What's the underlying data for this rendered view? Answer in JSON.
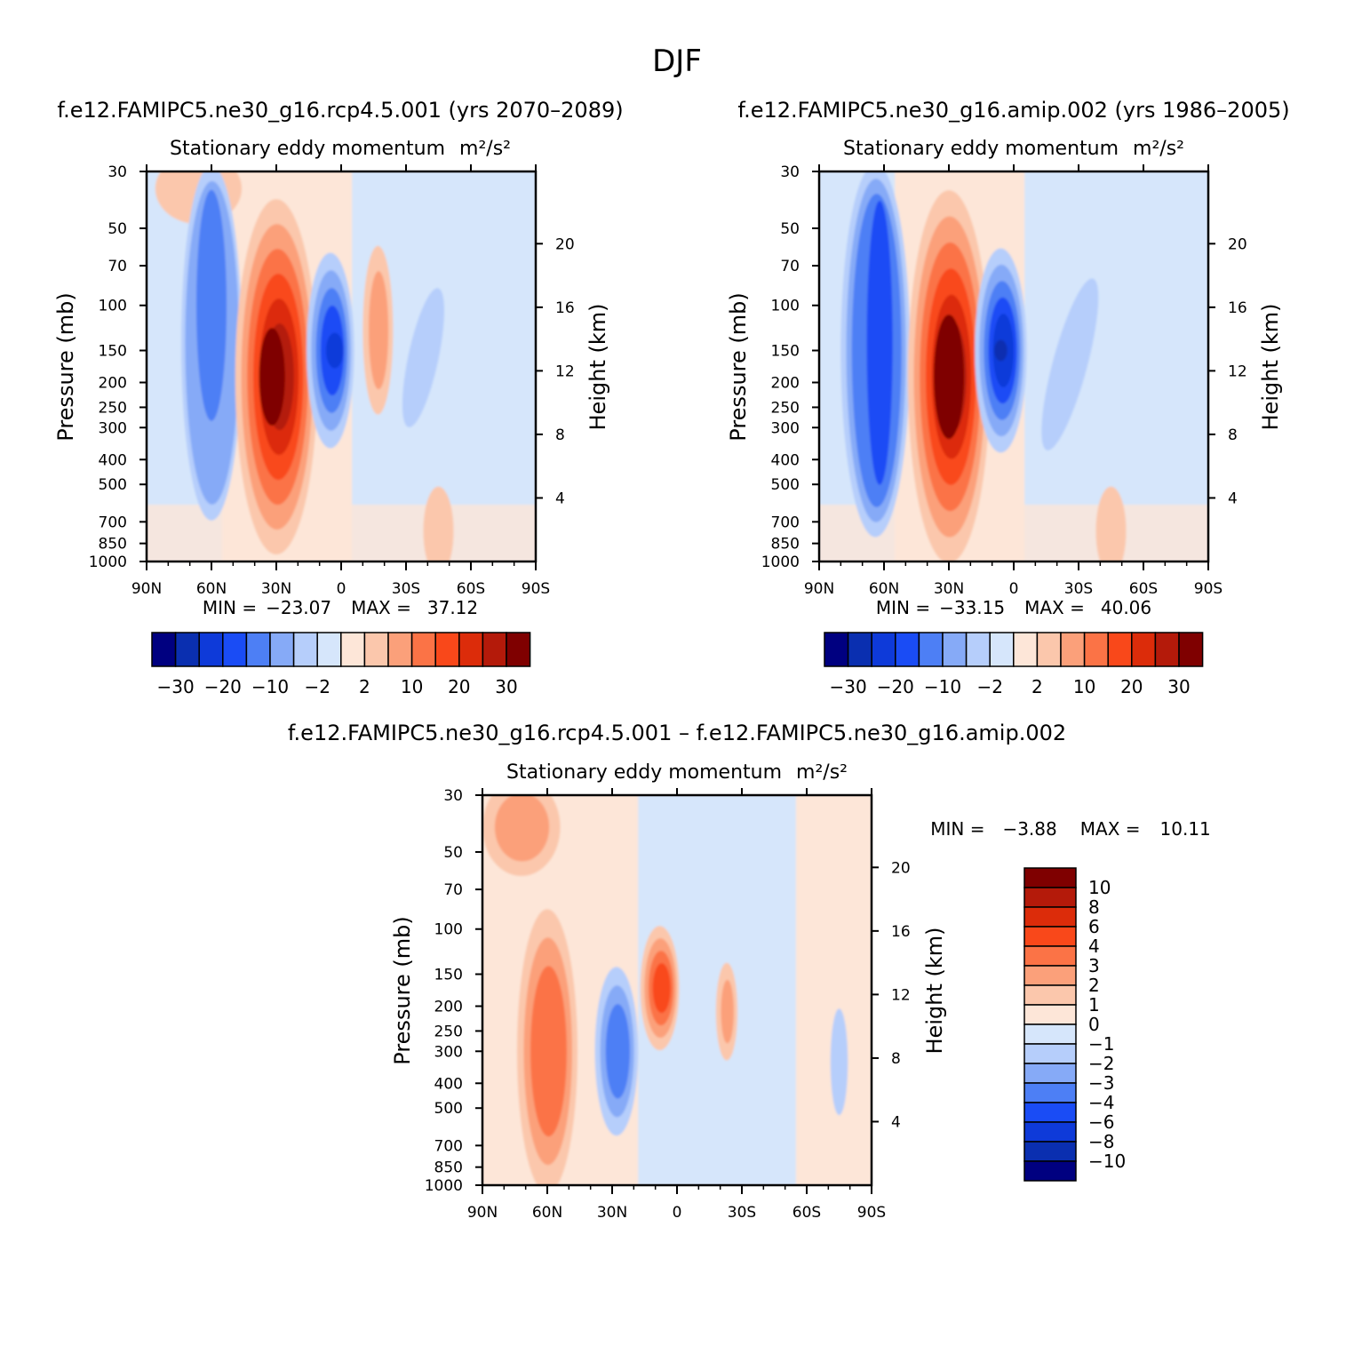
{
  "title": "DJF",
  "colors": {
    "blues": [
      "#000080",
      "#0a2fb0",
      "#0e3ad9",
      "#1a4cf5",
      "#4d7ff5",
      "#86aaf7",
      "#b6cefb",
      "#d6e6fb"
    ],
    "reds": [
      "#fde6d8",
      "#fbc7ac",
      "#fba07a",
      "#fb7346",
      "#f9481a",
      "#dc2c0a",
      "#b41a0a",
      "#7f0000"
    ]
  },
  "panel_text": {
    "subtitle": "Stationary eddy momentum",
    "units": "m²/s²",
    "ylabel_left": "Pressure (mb)",
    "ylabel_right": "Height (km)",
    "pressure_ticks": [
      "30",
      "50",
      "70",
      "100",
      "150",
      "200",
      "250",
      "300",
      "400",
      "500",
      "700",
      "850",
      "1000"
    ],
    "height_ticks": [
      "20",
      "16",
      "12",
      "8",
      "4"
    ],
    "lat_ticks": [
      "90N",
      "60N",
      "30N",
      "0",
      "30S",
      "60S",
      "90S"
    ]
  },
  "chart_data": [
    {
      "type": "heatmap",
      "title": "f.e12.FAMIPC5.ne30_g16.rcp4.5.001 (yrs 2070–2089)",
      "subtitle": "Stationary eddy momentum",
      "units": "m²/s²",
      "xlabel": "",
      "ylabel": "Pressure (mb)",
      "ylabel_right": "Height (km)",
      "x_ticks": [
        "90N",
        "60N",
        "30N",
        "0",
        "30S",
        "60S",
        "90S"
      ],
      "y_range_mb": [
        1000,
        30
      ],
      "y_log": true,
      "min_label": "MIN =",
      "min": "−23.07",
      "max_label": "MAX =",
      "max": "37.12",
      "colorbar_labels": [
        "−30",
        "−20",
        "−10",
        "−2",
        "2",
        "10",
        "20",
        "30"
      ],
      "colorbar_orientation": "horizontal",
      "features": [
        {
          "lat": 60,
          "p": 110,
          "value": -14,
          "kind": "negative"
        },
        {
          "lat": 30,
          "p": 190,
          "value": 37,
          "kind": "positive"
        },
        {
          "lat": 5,
          "p": 150,
          "value": -23,
          "kind": "negative"
        },
        {
          "lat": -15,
          "p": 130,
          "value": 3,
          "kind": "positive"
        },
        {
          "lat": -25,
          "p": 150,
          "value": -3,
          "kind": "negative"
        }
      ]
    },
    {
      "type": "heatmap",
      "title": "f.e12.FAMIPC5.ne30_g16.amip.002 (yrs 1986–2005)",
      "subtitle": "Stationary eddy momentum",
      "units": "m²/s²",
      "xlabel": "",
      "ylabel": "Pressure (mb)",
      "ylabel_right": "Height (km)",
      "x_ticks": [
        "90N",
        "60N",
        "30N",
        "0",
        "30S",
        "60S",
        "90S"
      ],
      "y_range_mb": [
        1000,
        30
      ],
      "y_log": true,
      "min_label": "MIN =",
      "min": "−33.15",
      "max_label": "MAX =",
      "max": "40.06",
      "colorbar_labels": [
        "−30",
        "−20",
        "−10",
        "−2",
        "2",
        "10",
        "20",
        "30"
      ],
      "colorbar_orientation": "horizontal",
      "features": [
        {
          "lat": 62,
          "p": 130,
          "value": -18,
          "kind": "negative"
        },
        {
          "lat": 30,
          "p": 190,
          "value": 40,
          "kind": "positive"
        },
        {
          "lat": 6,
          "p": 150,
          "value": -33,
          "kind": "negative"
        },
        {
          "lat": -25,
          "p": 170,
          "value": -3,
          "kind": "negative"
        }
      ]
    },
    {
      "type": "heatmap",
      "title": "f.e12.FAMIPC5.ne30_g16.rcp4.5.001 – f.e12.FAMIPC5.ne30_g16.amip.002",
      "subtitle": "Stationary eddy momentum",
      "units": "m²/s²",
      "xlabel": "",
      "ylabel": "Pressure (mb)",
      "ylabel_right": "Height (km)",
      "x_ticks": [
        "90N",
        "60N",
        "30N",
        "0",
        "30S",
        "60S",
        "90S"
      ],
      "y_range_mb": [
        1000,
        30
      ],
      "y_log": true,
      "min_label": "MIN =",
      "min": "−3.88",
      "max_label": "MAX =",
      "max": "10.11",
      "colorbar_labels": [
        "10",
        "8",
        "6",
        "4",
        "3",
        "2",
        "1",
        "0",
        "−1",
        "−2",
        "−3",
        "−4",
        "−6",
        "−8",
        "−10"
      ],
      "colorbar_orientation": "vertical",
      "features": [
        {
          "lat": 60,
          "p": 270,
          "value": 5,
          "kind": "positive"
        },
        {
          "lat": 25,
          "p": 260,
          "value": -4,
          "kind": "negative"
        },
        {
          "lat": 8,
          "p": 160,
          "value": 10,
          "kind": "positive"
        },
        {
          "lat": -25,
          "p": 200,
          "value": 2,
          "kind": "positive"
        },
        {
          "lat": 70,
          "p": 35,
          "value": 3,
          "kind": "positive"
        }
      ]
    }
  ]
}
